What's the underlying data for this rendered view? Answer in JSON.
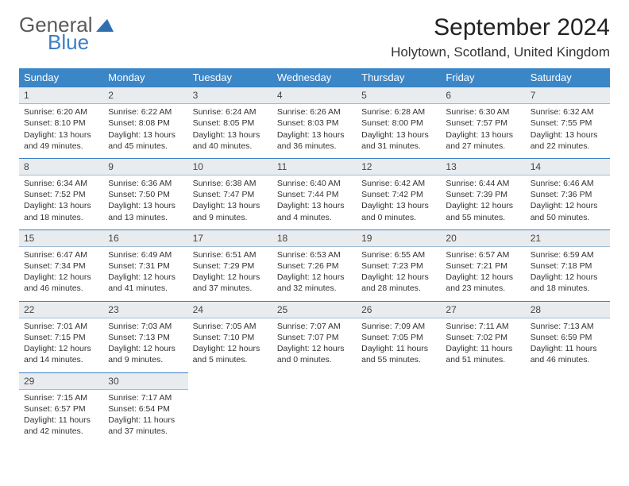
{
  "logo": {
    "text_general": "General",
    "text_blue": "Blue",
    "icon_color": "#2f6fb0"
  },
  "header": {
    "title": "September 2024",
    "subtitle": "Holytown, Scotland, United Kingdom"
  },
  "colors": {
    "header_bg": "#3b86c7",
    "header_text": "#ffffff",
    "daynum_bg": "#e9ecef",
    "daynum_border_top": "#3b7fc4",
    "body_text": "#333333"
  },
  "day_headers": [
    "Sunday",
    "Monday",
    "Tuesday",
    "Wednesday",
    "Thursday",
    "Friday",
    "Saturday"
  ],
  "weeks": [
    [
      {
        "num": "1",
        "sunrise": "Sunrise: 6:20 AM",
        "sunset": "Sunset: 8:10 PM",
        "daylight": "Daylight: 13 hours and 49 minutes."
      },
      {
        "num": "2",
        "sunrise": "Sunrise: 6:22 AM",
        "sunset": "Sunset: 8:08 PM",
        "daylight": "Daylight: 13 hours and 45 minutes."
      },
      {
        "num": "3",
        "sunrise": "Sunrise: 6:24 AM",
        "sunset": "Sunset: 8:05 PM",
        "daylight": "Daylight: 13 hours and 40 minutes."
      },
      {
        "num": "4",
        "sunrise": "Sunrise: 6:26 AM",
        "sunset": "Sunset: 8:03 PM",
        "daylight": "Daylight: 13 hours and 36 minutes."
      },
      {
        "num": "5",
        "sunrise": "Sunrise: 6:28 AM",
        "sunset": "Sunset: 8:00 PM",
        "daylight": "Daylight: 13 hours and 31 minutes."
      },
      {
        "num": "6",
        "sunrise": "Sunrise: 6:30 AM",
        "sunset": "Sunset: 7:57 PM",
        "daylight": "Daylight: 13 hours and 27 minutes."
      },
      {
        "num": "7",
        "sunrise": "Sunrise: 6:32 AM",
        "sunset": "Sunset: 7:55 PM",
        "daylight": "Daylight: 13 hours and 22 minutes."
      }
    ],
    [
      {
        "num": "8",
        "sunrise": "Sunrise: 6:34 AM",
        "sunset": "Sunset: 7:52 PM",
        "daylight": "Daylight: 13 hours and 18 minutes."
      },
      {
        "num": "9",
        "sunrise": "Sunrise: 6:36 AM",
        "sunset": "Sunset: 7:50 PM",
        "daylight": "Daylight: 13 hours and 13 minutes."
      },
      {
        "num": "10",
        "sunrise": "Sunrise: 6:38 AM",
        "sunset": "Sunset: 7:47 PM",
        "daylight": "Daylight: 13 hours and 9 minutes."
      },
      {
        "num": "11",
        "sunrise": "Sunrise: 6:40 AM",
        "sunset": "Sunset: 7:44 PM",
        "daylight": "Daylight: 13 hours and 4 minutes."
      },
      {
        "num": "12",
        "sunrise": "Sunrise: 6:42 AM",
        "sunset": "Sunset: 7:42 PM",
        "daylight": "Daylight: 13 hours and 0 minutes."
      },
      {
        "num": "13",
        "sunrise": "Sunrise: 6:44 AM",
        "sunset": "Sunset: 7:39 PM",
        "daylight": "Daylight: 12 hours and 55 minutes."
      },
      {
        "num": "14",
        "sunrise": "Sunrise: 6:46 AM",
        "sunset": "Sunset: 7:36 PM",
        "daylight": "Daylight: 12 hours and 50 minutes."
      }
    ],
    [
      {
        "num": "15",
        "sunrise": "Sunrise: 6:47 AM",
        "sunset": "Sunset: 7:34 PM",
        "daylight": "Daylight: 12 hours and 46 minutes."
      },
      {
        "num": "16",
        "sunrise": "Sunrise: 6:49 AM",
        "sunset": "Sunset: 7:31 PM",
        "daylight": "Daylight: 12 hours and 41 minutes."
      },
      {
        "num": "17",
        "sunrise": "Sunrise: 6:51 AM",
        "sunset": "Sunset: 7:29 PM",
        "daylight": "Daylight: 12 hours and 37 minutes."
      },
      {
        "num": "18",
        "sunrise": "Sunrise: 6:53 AM",
        "sunset": "Sunset: 7:26 PM",
        "daylight": "Daylight: 12 hours and 32 minutes."
      },
      {
        "num": "19",
        "sunrise": "Sunrise: 6:55 AM",
        "sunset": "Sunset: 7:23 PM",
        "daylight": "Daylight: 12 hours and 28 minutes."
      },
      {
        "num": "20",
        "sunrise": "Sunrise: 6:57 AM",
        "sunset": "Sunset: 7:21 PM",
        "daylight": "Daylight: 12 hours and 23 minutes."
      },
      {
        "num": "21",
        "sunrise": "Sunrise: 6:59 AM",
        "sunset": "Sunset: 7:18 PM",
        "daylight": "Daylight: 12 hours and 18 minutes."
      }
    ],
    [
      {
        "num": "22",
        "sunrise": "Sunrise: 7:01 AM",
        "sunset": "Sunset: 7:15 PM",
        "daylight": "Daylight: 12 hours and 14 minutes."
      },
      {
        "num": "23",
        "sunrise": "Sunrise: 7:03 AM",
        "sunset": "Sunset: 7:13 PM",
        "daylight": "Daylight: 12 hours and 9 minutes."
      },
      {
        "num": "24",
        "sunrise": "Sunrise: 7:05 AM",
        "sunset": "Sunset: 7:10 PM",
        "daylight": "Daylight: 12 hours and 5 minutes."
      },
      {
        "num": "25",
        "sunrise": "Sunrise: 7:07 AM",
        "sunset": "Sunset: 7:07 PM",
        "daylight": "Daylight: 12 hours and 0 minutes."
      },
      {
        "num": "26",
        "sunrise": "Sunrise: 7:09 AM",
        "sunset": "Sunset: 7:05 PM",
        "daylight": "Daylight: 11 hours and 55 minutes."
      },
      {
        "num": "27",
        "sunrise": "Sunrise: 7:11 AM",
        "sunset": "Sunset: 7:02 PM",
        "daylight": "Daylight: 11 hours and 51 minutes."
      },
      {
        "num": "28",
        "sunrise": "Sunrise: 7:13 AM",
        "sunset": "Sunset: 6:59 PM",
        "daylight": "Daylight: 11 hours and 46 minutes."
      }
    ],
    [
      {
        "num": "29",
        "sunrise": "Sunrise: 7:15 AM",
        "sunset": "Sunset: 6:57 PM",
        "daylight": "Daylight: 11 hours and 42 minutes."
      },
      {
        "num": "30",
        "sunrise": "Sunrise: 7:17 AM",
        "sunset": "Sunset: 6:54 PM",
        "daylight": "Daylight: 11 hours and 37 minutes."
      },
      null,
      null,
      null,
      null,
      null
    ]
  ]
}
